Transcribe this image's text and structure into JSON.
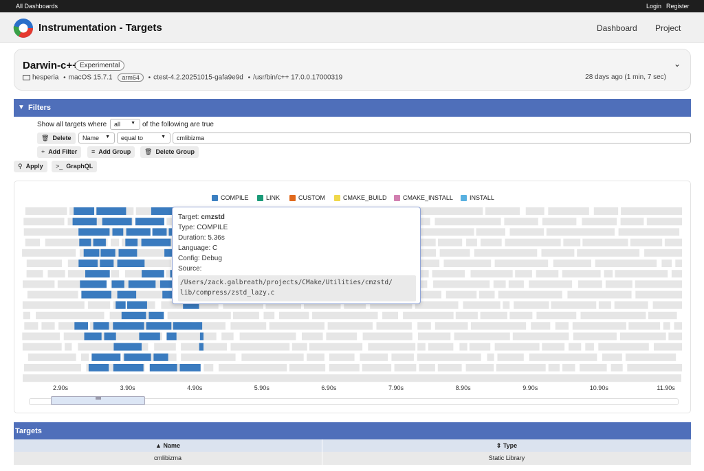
{
  "topbar": {
    "all_dashboards": "All Dashboards",
    "login": "Login",
    "register": "Register"
  },
  "header": {
    "title": "Instrumentation - Targets",
    "nav": [
      "Dashboard",
      "Project"
    ]
  },
  "build": {
    "name": "Darwin-c++",
    "badge": "Experimental",
    "host": "hesperia",
    "os": "macOS 15.7.1",
    "arch": "arm64",
    "ctest": "ctest-4.2.20251015-gafa9e9d",
    "compiler": "/usr/bin/c++ 17.0.0.17000319",
    "ago": "28 days ago (1 min, 7 sec)"
  },
  "filters": {
    "title": "Filters",
    "show_prefix": "Show all targets where",
    "match_mode": "all",
    "show_suffix": "of the following are true",
    "delete_label": "Delete",
    "field": "Name",
    "operator": "equal to",
    "value": "cmlibizma",
    "add_filter": "Add Filter",
    "add_group": "Add Group",
    "delete_group": "Delete Group",
    "apply": "Apply",
    "graphql": "GraphQL"
  },
  "chart_data": {
    "type": "timeline",
    "legend": [
      {
        "name": "COMPILE",
        "color": "#3b7fc1"
      },
      {
        "name": "LINK",
        "color": "#1a9a78"
      },
      {
        "name": "CUSTOM",
        "color": "#e0691d"
      },
      {
        "name": "CMAKE_BUILD",
        "color": "#f0d84a"
      },
      {
        "name": "CMAKE_INSTALL",
        "color": "#d17fb0"
      },
      {
        "name": "INSTALL",
        "color": "#58b0e0"
      }
    ],
    "x_ticks": [
      "2.90s",
      "3.90s",
      "4.90s",
      "5.90s",
      "6.90s",
      "7.90s",
      "8.90s",
      "9.90s",
      "10.90s",
      "11.90s"
    ]
  },
  "tooltip": {
    "target_label": "Target:",
    "target": "cmzstd",
    "type": "Type: COMPILE",
    "duration": "Duration: 5.36s",
    "language": "Language: C",
    "config": "Config: Debug",
    "source_label": "Source:",
    "source_line1": "/Users/zack.galbreath/projects/CMake/Utilities/cmzstd/",
    "source_line2": "lib/compress/zstd_lazy.c"
  },
  "targets": {
    "title": "Targets",
    "columns": [
      "Name",
      "Type"
    ],
    "rows": [
      {
        "name": "cmlibizma",
        "type": "Static Library"
      }
    ]
  }
}
